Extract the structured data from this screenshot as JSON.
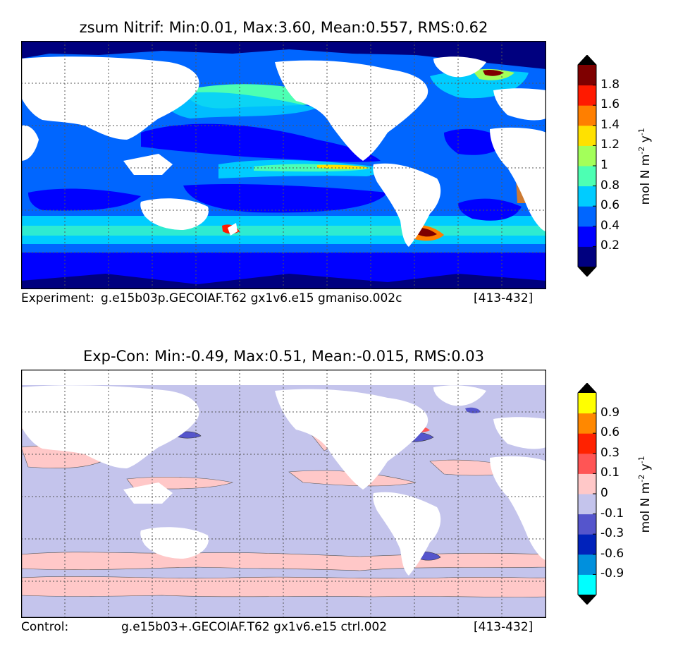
{
  "top_panel": {
    "title": "zsum Nitrif: Min:0.01, Max:3.60, Mean:0.557, RMS:0.62",
    "caption_left": "Experiment:",
    "caption_case": "g.e15b03p.GECOIAF.T62 gx1v6.e15 gmaniso.002c",
    "caption_years": "[413-432]",
    "colorbar_label": "mol N m",
    "colorbar_label_exp1": "-2",
    "colorbar_label_mid": " y",
    "colorbar_label_exp2": "-1"
  },
  "bottom_panel": {
    "title": "Exp-Con: Min:-0.49, Max:0.51, Mean:-0.015, RMS:0.03",
    "caption_left": "Control:",
    "caption_case": "g.e15b03+.GECOIAF.T62 gx1v6.e15 ctrl.002",
    "caption_years": "[413-432]",
    "colorbar_label": "mol N m",
    "colorbar_label_exp1": "-2",
    "colorbar_label_mid": " y",
    "colorbar_label_exp2": "-1"
  },
  "chart_data": [
    {
      "type": "heatmap",
      "title": "zsum Nitrif: Min:0.01, Max:3.60, Mean:0.557, RMS:0.62",
      "stats": {
        "min": 0.01,
        "max": 3.6,
        "mean": 0.557,
        "rms": 0.62
      },
      "colorbar": {
        "levels": [
          0.2,
          0.4,
          0.6,
          0.8,
          1,
          1.2,
          1.4,
          1.6,
          1.8
        ],
        "tick_labels": [
          "0.2",
          "0.4",
          "0.6",
          "0.8",
          "1",
          "1.2",
          "1.4",
          "1.6",
          "1.8"
        ],
        "colors": [
          "#00007f",
          "#0000ff",
          "#0066ff",
          "#00ccff",
          "#4dffb3",
          "#a3ff5a",
          "#ffe100",
          "#ff7f00",
          "#ff1a00",
          "#7f0000"
        ],
        "extend": "both",
        "extend_low_color": "#000000",
        "extend_high_color": "#000000"
      },
      "land_color": "#ffffff",
      "grid": true
    },
    {
      "type": "heatmap",
      "title": "Exp-Con: Min:-0.49, Max:0.51, Mean:-0.015, RMS:0.03",
      "stats": {
        "min": -0.49,
        "max": 0.51,
        "mean": -0.015,
        "rms": 0.03
      },
      "colorbar": {
        "levels": [
          -0.9,
          -0.6,
          -0.3,
          -0.1,
          0,
          0.1,
          0.3,
          0.6,
          0.9
        ],
        "tick_labels": [
          "-0.9",
          "-0.6",
          "-0.3",
          "-0.1",
          "0",
          "0.1",
          "0.3",
          "0.6",
          "0.9"
        ],
        "colors": [
          "#00ffff",
          "#0090dd",
          "#0022bb",
          "#5555cc",
          "#c4c4ec",
          "#ffc8c8",
          "#ff5555",
          "#ff2200",
          "#ff8800",
          "#ffff00"
        ],
        "extend": "both",
        "extend_low_color": "#000000",
        "extend_high_color": "#000000"
      },
      "land_color": "#ffffff",
      "grid": true
    }
  ]
}
